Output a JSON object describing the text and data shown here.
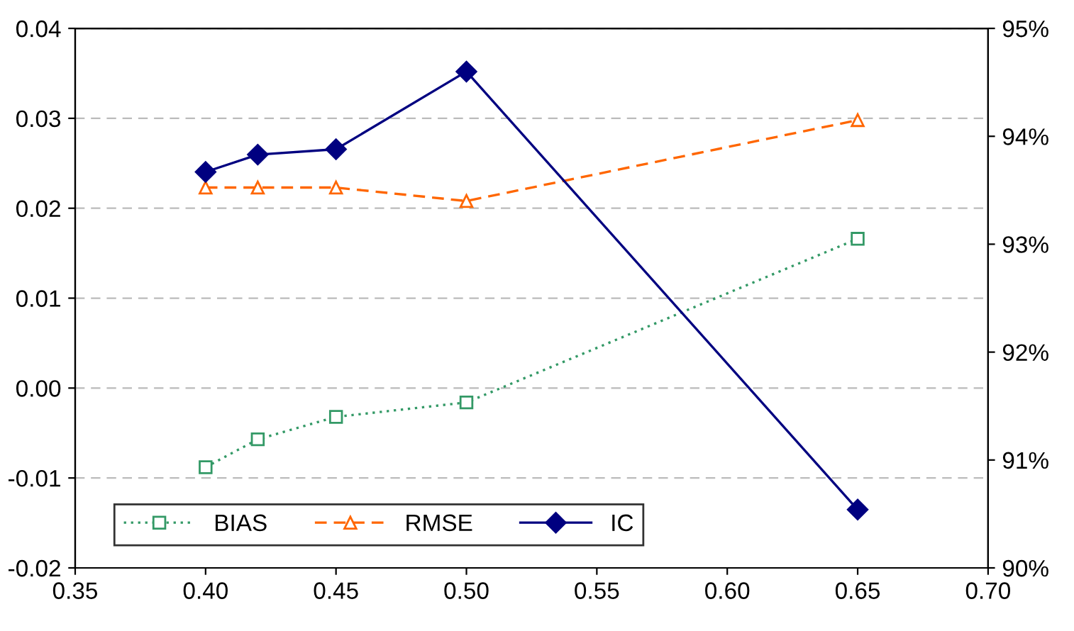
{
  "chart_data": {
    "type": "line",
    "x": [
      0.4,
      0.42,
      0.45,
      0.5,
      0.65
    ],
    "series": [
      {
        "name": "BIAS",
        "color": "#339966",
        "values": [
          -0.0088,
          -0.0057,
          -0.0032,
          -0.0016,
          0.0166
        ],
        "marker": "square",
        "line_style": "dotted"
      },
      {
        "name": "RMSE",
        "color": "#ff6600",
        "values": [
          0.0223,
          0.0223,
          0.0223,
          0.0208,
          0.0298
        ],
        "marker": "triangle",
        "line_style": "dashed"
      },
      {
        "name": "IC",
        "color": "#000080",
        "values": [
          93.67,
          93.83,
          93.88,
          94.6,
          90.54
        ],
        "marker": "diamond",
        "line_style": "solid",
        "axis": "y2"
      }
    ],
    "xlim": [
      0.35,
      0.7
    ],
    "xticks": [
      {
        "value": 0.35,
        "label": "0.35"
      },
      {
        "value": 0.4,
        "label": "0.40"
      },
      {
        "value": 0.45,
        "label": "0.45"
      },
      {
        "value": 0.5,
        "label": "0.50"
      },
      {
        "value": 0.55,
        "label": "0.55"
      },
      {
        "value": 0.6,
        "label": "0.60"
      },
      {
        "value": 0.65,
        "label": "0.65"
      },
      {
        "value": 0.7,
        "label": "0.70"
      }
    ],
    "ylim": [
      -0.02,
      0.04
    ],
    "yticks": [
      {
        "value": -0.02,
        "label": "-0.02"
      },
      {
        "value": -0.01,
        "label": "-0.01"
      },
      {
        "value": 0.0,
        "label": "0.00"
      },
      {
        "value": 0.01,
        "label": "0.01"
      },
      {
        "value": 0.02,
        "label": "0.02"
      },
      {
        "value": 0.03,
        "label": "0.03"
      },
      {
        "value": 0.04,
        "label": "0.04"
      }
    ],
    "y2lim": [
      90,
      95
    ],
    "y2ticks": [
      {
        "value": 90,
        "label": "90%"
      },
      {
        "value": 91,
        "label": "91%"
      },
      {
        "value": 92,
        "label": "92%"
      },
      {
        "value": 93,
        "label": "93%"
      },
      {
        "value": 94,
        "label": "94%"
      },
      {
        "value": 95,
        "label": "95%"
      }
    ],
    "grid": "y",
    "legend": "bottom left"
  }
}
